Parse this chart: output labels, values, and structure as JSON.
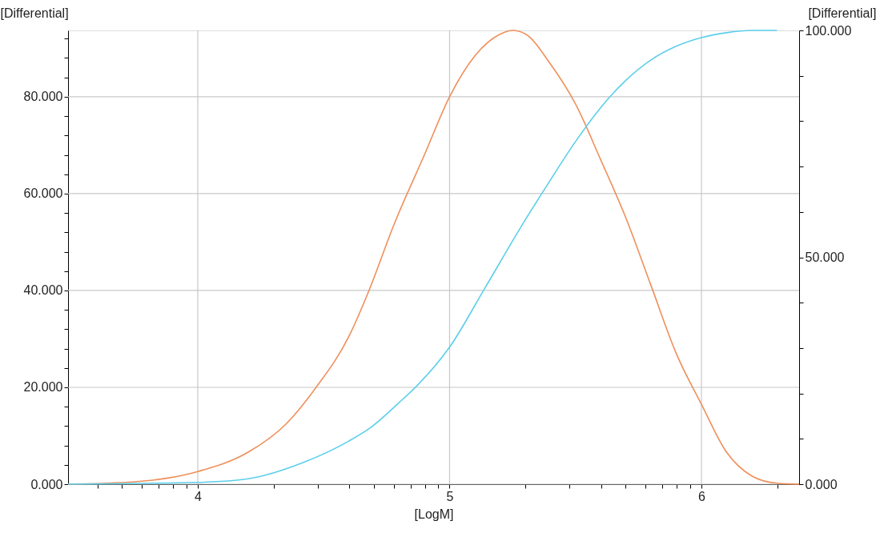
{
  "chart_data": {
    "type": "line",
    "xlabel": "[LogM]",
    "ylabel": "[Differential]",
    "y2label": "[Differential]",
    "grid": true,
    "line_style": "solid",
    "marker": "none",
    "xlim": [
      3.485,
      6.388
    ],
    "ylim": [
      0,
      93.7
    ],
    "y2lim": [
      0,
      100
    ],
    "xticks": [
      {
        "value": 3.602,
        "label": null
      },
      {
        "value": 3.699,
        "label": null
      },
      {
        "value": 3.778,
        "label": null
      },
      {
        "value": 3.845,
        "label": null
      },
      {
        "value": 3.903,
        "label": null
      },
      {
        "value": 3.954,
        "label": null
      },
      4,
      {
        "value": 4.301,
        "label": null
      },
      {
        "value": 4.477,
        "label": null
      },
      {
        "value": 4.602,
        "label": null
      },
      {
        "value": 4.699,
        "label": null
      },
      {
        "value": 4.778,
        "label": null
      },
      {
        "value": 4.845,
        "label": null
      },
      {
        "value": 4.903,
        "label": null
      },
      {
        "value": 4.954,
        "label": null
      },
      5,
      {
        "value": 5.301,
        "label": null
      },
      {
        "value": 5.477,
        "label": null
      },
      {
        "value": 5.602,
        "label": null
      },
      {
        "value": 5.699,
        "label": null
      },
      {
        "value": 5.778,
        "label": null
      },
      {
        "value": 5.845,
        "label": null
      },
      {
        "value": 5.903,
        "label": null
      },
      {
        "value": 5.954,
        "label": null
      },
      6,
      {
        "value": 6.301,
        "label": null
      }
    ],
    "yticks": [
      {
        "value": 0,
        "label": "0.000"
      },
      {
        "value": 4,
        "label": null
      },
      {
        "value": 8,
        "label": null
      },
      {
        "value": 12,
        "label": null
      },
      {
        "value": 16,
        "label": null
      },
      {
        "value": 20,
        "label": "20.000"
      },
      {
        "value": 24,
        "label": null
      },
      {
        "value": 28,
        "label": null
      },
      {
        "value": 32,
        "label": null
      },
      {
        "value": 36,
        "label": null
      },
      {
        "value": 40,
        "label": "40.000"
      },
      {
        "value": 44,
        "label": null
      },
      {
        "value": 48,
        "label": null
      },
      {
        "value": 52,
        "label": null
      },
      {
        "value": 56,
        "label": null
      },
      {
        "value": 60,
        "label": "60.000"
      },
      {
        "value": 64,
        "label": null
      },
      {
        "value": 68,
        "label": null
      },
      {
        "value": 72,
        "label": null
      },
      {
        "value": 76,
        "label": null
      },
      {
        "value": 80,
        "label": "80.000"
      },
      {
        "value": 84,
        "label": null
      },
      {
        "value": 88,
        "label": null
      },
      {
        "value": 92,
        "label": null
      }
    ],
    "y2ticks": [
      {
        "value": 0,
        "label": "0.000"
      },
      {
        "value": 10,
        "label": null
      },
      {
        "value": 20,
        "label": null
      },
      {
        "value": 30,
        "label": null
      },
      {
        "value": 40,
        "label": null
      },
      {
        "value": 50,
        "label": "50.000"
      },
      {
        "value": 60,
        "label": null
      },
      {
        "value": 70,
        "label": null
      },
      {
        "value": 80,
        "label": null
      },
      {
        "value": 90,
        "label": null
      },
      {
        "value": 100,
        "label": "100.000"
      }
    ],
    "series": [
      {
        "color": "#ef8f5a",
        "x": [
          3.485,
          3.75,
          4.0,
          4.2,
          4.35,
          4.47,
          4.6,
          4.68,
          4.78,
          4.9,
          5.0,
          5.1,
          5.2,
          5.25,
          5.3,
          5.4,
          5.5,
          5.6,
          5.7,
          5.8,
          5.9,
          6.0,
          6.1,
          6.2,
          6.3,
          6.388
        ],
        "values": [
          0,
          0.5,
          2.6,
          6.6,
          12.4,
          20,
          30.5,
          40,
          53.7,
          68,
          80,
          88.4,
          92.9,
          93.7,
          93,
          86.8,
          78.5,
          67,
          55,
          41,
          27,
          16.5,
          6.6,
          1.7,
          0.2,
          0
        ]
      },
      {
        "color": "#5ccfea",
        "axis": "y2",
        "x": [
          3.485,
          4.0,
          4.2,
          4.42,
          4.6,
          4.687,
          4.8,
          4.874,
          5.0,
          5.14,
          5.29,
          5.4,
          5.5,
          5.6,
          5.7,
          5.8,
          5.9,
          6.0,
          6.1,
          6.2,
          6.3
        ],
        "values": [
          0,
          0.4,
          1.2,
          4.8,
          9.5,
          12.5,
          18,
          21.9,
          30.2,
          43.2,
          57.3,
          67,
          75.5,
          83,
          89,
          93.5,
          96.5,
          98.4,
          99.5,
          100,
          100
        ]
      }
    ]
  }
}
